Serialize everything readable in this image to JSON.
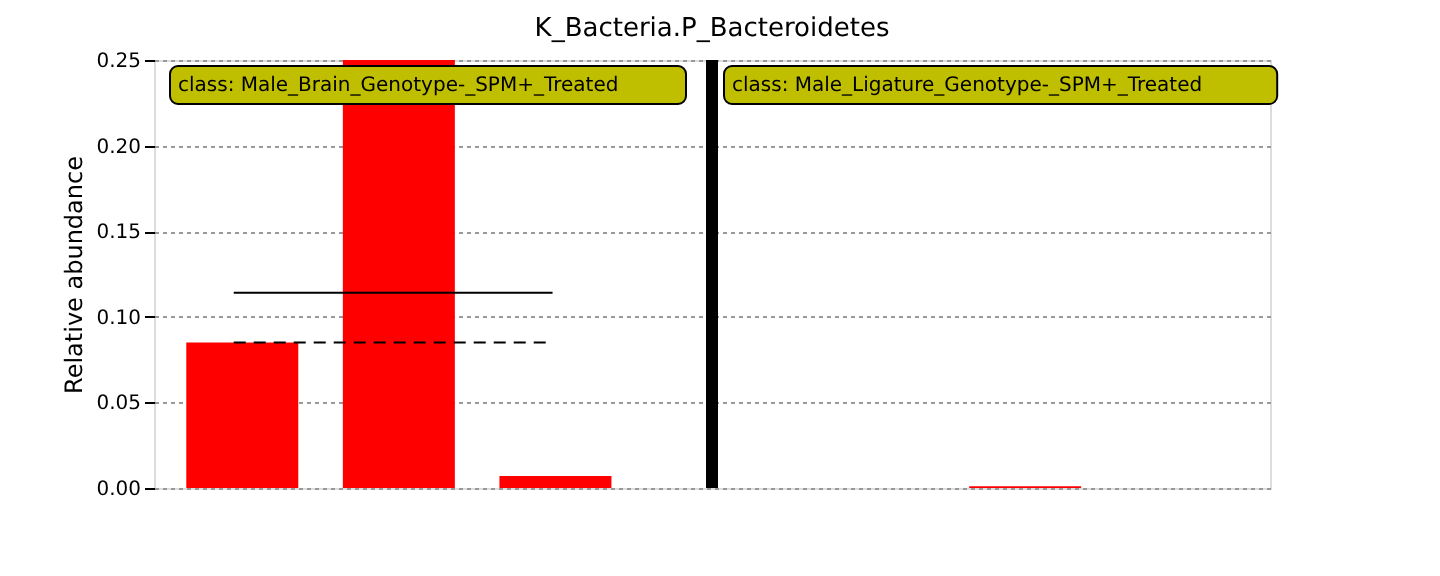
{
  "chart_data": {
    "type": "bar",
    "title": "K_Bacteria.P_Bacteroidetes",
    "ylabel": "Relative abundance",
    "categories": [
      null,
      null,
      null,
      null,
      null,
      null,
      null
    ],
    "tick_labels": "y",
    "series": [
      {
        "color": "#ff0000",
        "values": [
          0.085,
          0.25,
          0.007,
          null,
          0,
          0.001,
          0
        ]
      }
    ],
    "ylim": [
      0,
      0.25
    ],
    "yticks": [
      {
        "value": 0,
        "label": "0.00"
      },
      {
        "value": 0.05,
        "label": "0.05"
      },
      {
        "value": 0.1,
        "label": "0.10"
      },
      {
        "value": 0.15,
        "label": "0.15"
      },
      {
        "value": 0.2,
        "label": "0.20"
      },
      {
        "value": 0.25,
        "label": "0.25"
      }
    ],
    "ref_lines": [
      {
        "axis": "y",
        "value": 0.114,
        "color": "#000000",
        "line_style": "solid"
      },
      {
        "axis": "y",
        "value": 0.085,
        "color": "#000000",
        "line_style": "dashed"
      }
    ],
    "annotations": [
      "class: Male_Brain_Genotype-_SPM+_Treated",
      "class: Male_Ligature_Genotype-_SPM+_Treated"
    ],
    "grid": "y"
  }
}
